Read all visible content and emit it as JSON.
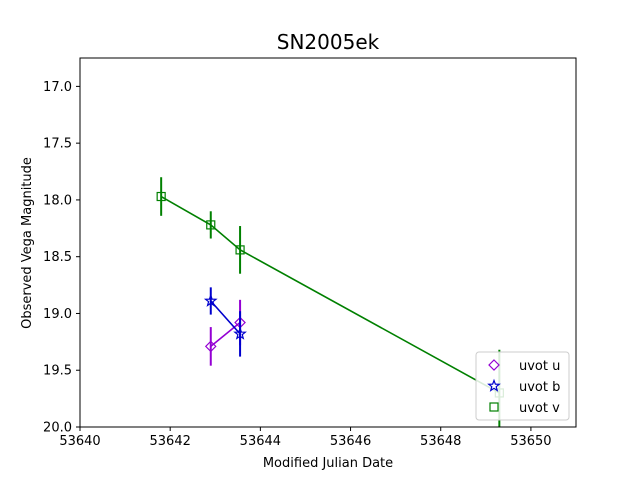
{
  "chart_data": {
    "type": "scatter",
    "title": "SN2005ek",
    "xlabel": "Modified Julian Date",
    "ylabel": "Observed Vega Magnitude",
    "xlim": [
      53640,
      53651
    ],
    "ylim": [
      20.0,
      16.75
    ],
    "y_inverted": true,
    "grid": false,
    "legend_position": "lower-right",
    "x_ticks": [
      53640,
      53642,
      53644,
      53646,
      53648,
      53650
    ],
    "x_tick_labels": [
      "53640",
      "53642",
      "53644",
      "53646",
      "53648",
      "53650"
    ],
    "y_ticks": [
      17.0,
      17.5,
      18.0,
      18.5,
      19.0,
      19.5,
      20.0
    ],
    "y_tick_labels": [
      "17.0",
      "17.5",
      "18.0",
      "18.5",
      "19.0",
      "19.5",
      "20.0"
    ],
    "series": [
      {
        "name": "uvot u",
        "marker": "diamond",
        "color": "#9400d3",
        "x": [
          53642.9,
          53643.55
        ],
        "y": [
          19.29,
          19.08
        ],
        "yerr": [
          0.17,
          0.2
        ]
      },
      {
        "name": "uvot b",
        "marker": "star",
        "color": "#0000cd",
        "x": [
          53642.9,
          53643.55
        ],
        "y": [
          18.89,
          19.18
        ],
        "yerr": [
          0.12,
          0.2
        ]
      },
      {
        "name": "uvot v",
        "marker": "square",
        "color": "#008000",
        "x": [
          53641.8,
          53642.9,
          53643.55,
          53649.3
        ],
        "y": [
          17.97,
          18.22,
          18.44,
          19.7
        ],
        "yerr": [
          0.17,
          0.12,
          0.21,
          0.38
        ]
      }
    ]
  }
}
